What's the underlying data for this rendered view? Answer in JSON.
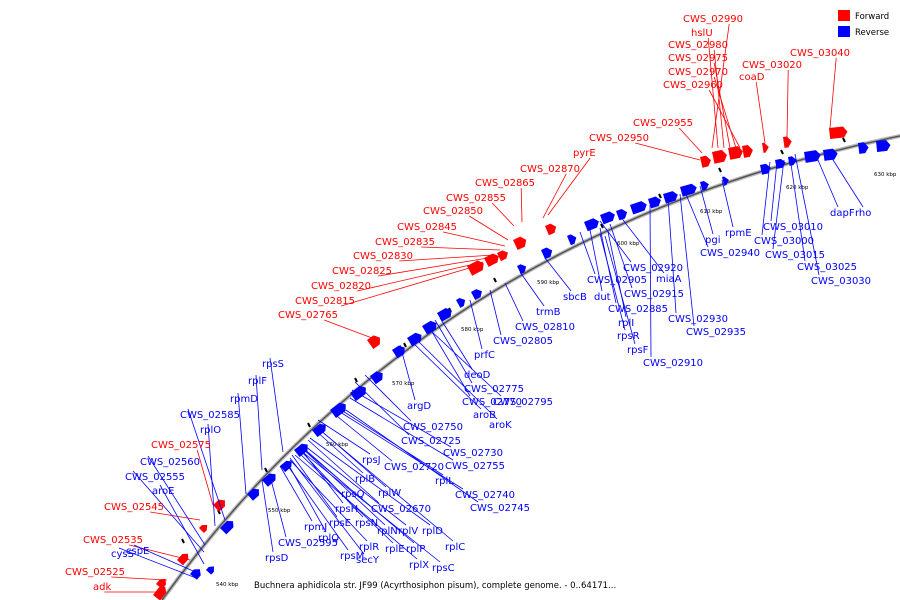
{
  "legend": [
    {
      "label": "Forward",
      "color": "#ff0000"
    },
    {
      "label": "Reverse",
      "color": "#0000ff"
    }
  ],
  "caption": "Buchnera aphidicola str. JF99 (Acyrthosiphon pisum), complete genome. - 0..64171...",
  "scale_labels": [
    "540 kbp",
    "550 kbp",
    "560 kbp",
    "570 kbp",
    "580 kbp",
    "590 kbp",
    "600 kbp",
    "610 kbp",
    "620 kbp",
    "630 kbp"
  ],
  "forward_labels": [
    "CWS_02990",
    "hslU",
    "CWS_02980",
    "CWS_02975",
    "CWS_02970",
    "CWS_02960",
    "coaD",
    "CWS_03020",
    "CWS_03040",
    "CWS_02955",
    "CWS_02950",
    "pyrE",
    "CWS_02870",
    "CWS_02865",
    "CWS_02855",
    "CWS_02850",
    "CWS_02845",
    "CWS_02835",
    "CWS_02830",
    "CWS_02825",
    "CWS_02820",
    "CWS_02815",
    "CWS_02765",
    "CWS_02575",
    "CWS_02545",
    "CWS_02535",
    "CWS_02525",
    "adk"
  ],
  "reverse_labels": [
    "rpsS",
    "rplF",
    "rpmD",
    "CWS_02585",
    "rplO",
    "CWS_02560",
    "CWS_02555",
    "aroE",
    "cspE",
    "cysS",
    "rpmE",
    "pgi",
    "CWS_02940",
    "CWS_02920",
    "miaA",
    "CWS_02905",
    "CWS_02915",
    "dut",
    "CWS_02885",
    "rplI",
    "rpsR",
    "rpsF",
    "CWS_02930",
    "CWS_02935",
    "CWS_02910",
    "sbcB",
    "trmB",
    "CWS_02810",
    "CWS_02805",
    "prfC",
    "deoD",
    "CWS_02775",
    "CWS_02770",
    "CWS_02795",
    "argD",
    "aroB",
    "aroK",
    "CWS_02750",
    "CWS_02725",
    "CWS_02730",
    "rpsJ",
    "CWS_02720",
    "CWS_02755",
    "rplL",
    "rplB",
    "rplW",
    "CWS_02740",
    "CWS_02745",
    "rpsQ",
    "rpsH",
    "CWS_02670",
    "rpsE",
    "rpsN",
    "rplD",
    "rpmJ",
    "rplQ",
    "rplN",
    "rplV",
    "CWS_02595",
    "rplR",
    "rplE",
    "rplP",
    "rplC",
    "rpsM",
    "secY",
    "rpsD",
    "rplX",
    "rpsC",
    "CWS_03010",
    "CWS_03000",
    "CWS_03015",
    "CWS_03025",
    "CWS_03030",
    "dapF",
    "rho"
  ]
}
